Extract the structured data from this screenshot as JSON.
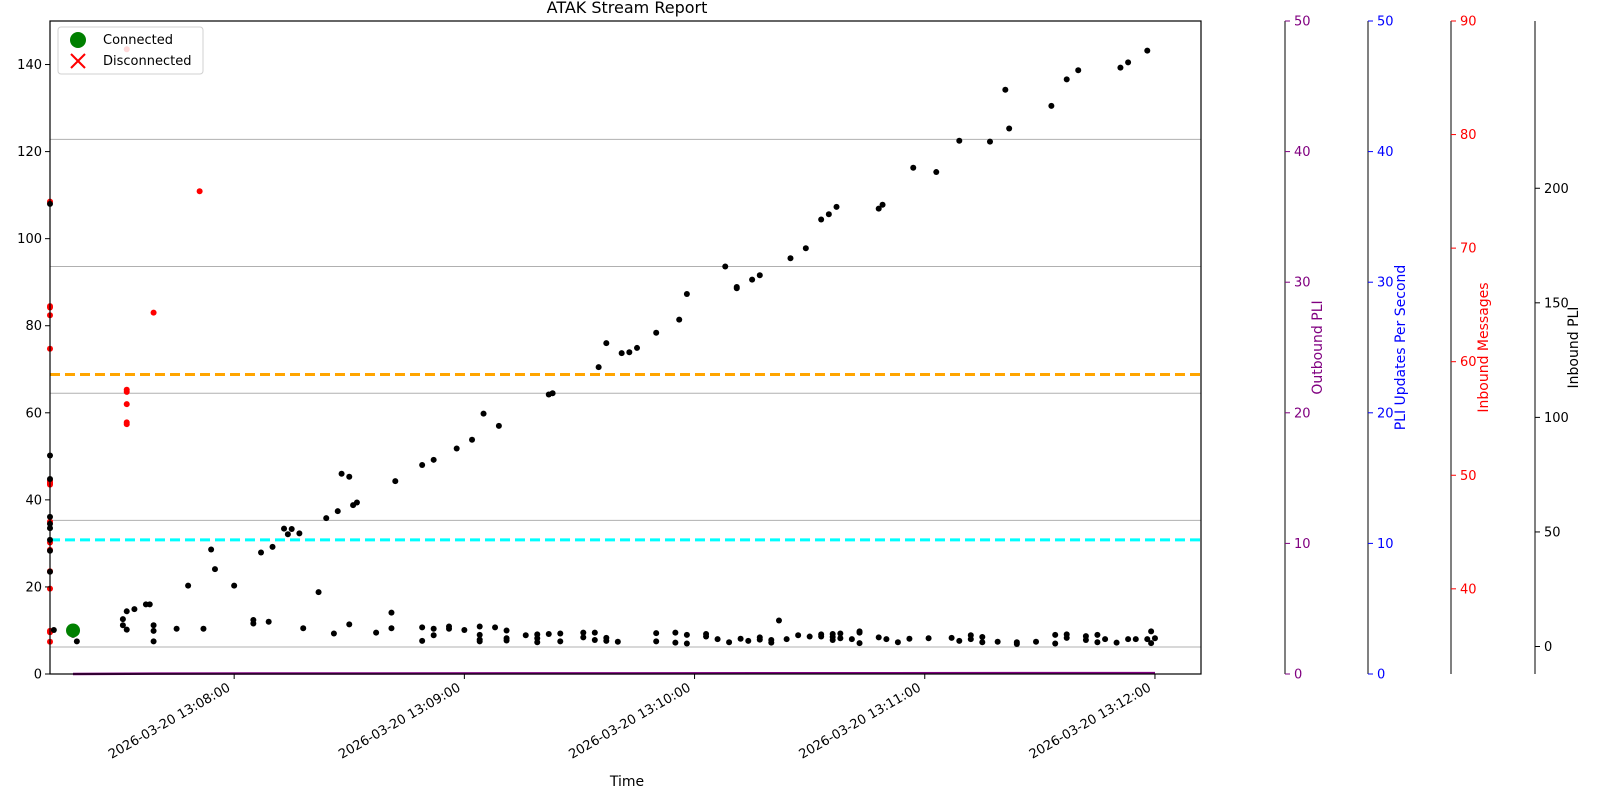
{
  "chart_data": {
    "type": "scatter",
    "title": "ATAK Stream Report",
    "xlabel": "Time",
    "ylabel": "",
    "xlim": [
      "2026-03-20 13:07:12",
      "2026-03-20 13:12:12"
    ],
    "ylim": [
      0,
      150
    ],
    "x_ticks": [
      "2026-03-20 13:08:00",
      "2026-03-20 13:09:00",
      "2026-03-20 13:10:00",
      "2026-03-20 13:11:00",
      "2026-03-20 13:12:00"
    ],
    "y_ticks": [
      0,
      20,
      40,
      60,
      80,
      100,
      120,
      140
    ],
    "grid": "horizontal lines only",
    "legend": {
      "position": "top-left",
      "entries": [
        {
          "label": "Connected",
          "marker": "circle",
          "color": "#008000"
        },
        {
          "label": "Disconnected",
          "marker": "x",
          "color": "#ff0000"
        }
      ]
    },
    "colors": {
      "inbound_pli": "#000000",
      "inbound_messages": "#ff0000",
      "outbound_pli": "#800080",
      "pli_per_second": "#0000ff",
      "orange_line": "#ffa500",
      "cyan_line": "#00ffff",
      "connected": "#008000",
      "grid": "#b0b0b0"
    },
    "horizontal_lines": [
      {
        "color": "orange",
        "style": "dashed",
        "y": 68.8
      },
      {
        "color": "cyan",
        "style": "dashed",
        "y": 30.8
      }
    ],
    "gridline_y": [
      6.2,
      35.3,
      64.5,
      93.6,
      122.8
    ],
    "secondary_axes": [
      {
        "label": "Outbound PLI",
        "color": "#800080",
        "range": [
          0,
          50
        ],
        "ticks": [
          0,
          10,
          20,
          30,
          40,
          50
        ]
      },
      {
        "label": "PLI Updates Per Second",
        "color": "#0000ff",
        "range": [
          0,
          50
        ],
        "ticks": [
          0,
          10,
          20,
          30,
          40,
          50
        ]
      },
      {
        "label": "Inbound Messages",
        "color": "#ff0000",
        "range": [
          32.5,
          90
        ],
        "ticks": [
          40,
          50,
          60,
          70,
          80,
          90
        ]
      },
      {
        "label": "Inbound PLI",
        "color": "#000000",
        "range": [
          -12,
          273
        ],
        "ticks": [
          0,
          50,
          100,
          150,
          200
        ]
      }
    ],
    "connected_events": [
      {
        "t": "2026-03-20 13:07:18",
        "y": 10
      }
    ],
    "outbound_pli_series": {
      "name": "Outbound PLI",
      "x": [
        "2026-03-20 13:07:18",
        "2026-03-20 13:07:39",
        "2026-03-20 13:12:00"
      ],
      "y": [
        0,
        0.1,
        0.2
      ]
    },
    "inbound_message_points": [
      [
        "2026-03-20 13:07:12",
        108.5
      ],
      [
        "2026-03-20 13:07:12",
        84.5
      ],
      [
        "2026-03-20 13:07:12",
        84.2
      ],
      [
        "2026-03-20 13:07:12",
        82.4
      ],
      [
        "2026-03-20 13:07:12",
        74.7
      ],
      [
        "2026-03-20 13:07:12",
        43.5
      ],
      [
        "2026-03-20 13:07:12",
        44.0
      ],
      [
        "2026-03-20 13:07:12",
        44.4
      ],
      [
        "2026-03-20 13:07:12",
        43.8
      ],
      [
        "2026-03-20 13:07:12",
        35.0
      ],
      [
        "2026-03-20 13:07:12",
        30.2
      ],
      [
        "2026-03-20 13:07:12",
        28.5
      ],
      [
        "2026-03-20 13:07:12",
        23.6
      ],
      [
        "2026-03-20 13:07:12",
        19.6
      ],
      [
        "2026-03-20 13:07:12",
        9.9
      ],
      [
        "2026-03-20 13:07:12",
        9.6
      ],
      [
        "2026-03-20 13:07:12",
        7.4
      ],
      [
        "2026-03-20 13:07:32",
        143.5
      ],
      [
        "2026-03-20 13:07:32",
        65.3
      ],
      [
        "2026-03-20 13:07:32",
        64.8
      ],
      [
        "2026-03-20 13:07:32",
        62.0
      ],
      [
        "2026-03-20 13:07:32",
        57.8
      ],
      [
        "2026-03-20 13:07:32",
        57.4
      ],
      [
        "2026-03-20 13:07:39",
        83.0
      ],
      [
        "2026-03-20 13:07:51",
        110.9
      ]
    ],
    "inbound_pli_points": [
      [
        "2026-03-20 13:07:12",
        108.0
      ],
      [
        "2026-03-20 13:07:12",
        50.2
      ],
      [
        "2026-03-20 13:07:12",
        44.8
      ],
      [
        "2026-03-20 13:07:12",
        36.1
      ],
      [
        "2026-03-20 13:07:12",
        34.5
      ],
      [
        "2026-03-20 13:07:12",
        33.5
      ],
      [
        "2026-03-20 13:07:12",
        30.8
      ],
      [
        "2026-03-20 13:07:12",
        28.3
      ],
      [
        "2026-03-20 13:07:12",
        23.5
      ],
      [
        "2026-03-20 13:07:13",
        10.1
      ],
      [
        "2026-03-20 13:07:18",
        10.8
      ],
      [
        "2026-03-20 13:07:18",
        10.2
      ],
      [
        "2026-03-20 13:07:18",
        9.4
      ],
      [
        "2026-03-20 13:07:18",
        9.0
      ],
      [
        "2026-03-20 13:07:19",
        7.5
      ],
      [
        "2026-03-20 13:07:31",
        12.6
      ],
      [
        "2026-03-20 13:07:31",
        11.2
      ],
      [
        "2026-03-20 13:07:32",
        10.2
      ],
      [
        "2026-03-20 13:07:32",
        14.4
      ],
      [
        "2026-03-20 13:07:34",
        14.9
      ],
      [
        "2026-03-20 13:07:37",
        16.0
      ],
      [
        "2026-03-20 13:07:38",
        16.0
      ],
      [
        "2026-03-20 13:07:39",
        11.2
      ],
      [
        "2026-03-20 13:07:39",
        9.9
      ],
      [
        "2026-03-20 13:07:39",
        7.5
      ],
      [
        "2026-03-20 13:07:45",
        10.4
      ],
      [
        "2026-03-20 13:07:48",
        20.3
      ],
      [
        "2026-03-20 13:07:52",
        10.4
      ],
      [
        "2026-03-20 13:07:54",
        28.6
      ],
      [
        "2026-03-20 13:07:55",
        24.1
      ],
      [
        "2026-03-20 13:08:00",
        20.3
      ],
      [
        "2026-03-20 13:08:05",
        12.4
      ],
      [
        "2026-03-20 13:08:05",
        11.6
      ],
      [
        "2026-03-20 13:08:07",
        27.9
      ],
      [
        "2026-03-20 13:08:09",
        12.0
      ],
      [
        "2026-03-20 13:08:10",
        29.2
      ],
      [
        "2026-03-20 13:08:13",
        33.4
      ],
      [
        "2026-03-20 13:08:14",
        32.1
      ],
      [
        "2026-03-20 13:08:15",
        33.3
      ],
      [
        "2026-03-20 13:08:17",
        32.3
      ],
      [
        "2026-03-20 13:08:18",
        10.5
      ],
      [
        "2026-03-20 13:08:22",
        18.8
      ],
      [
        "2026-03-20 13:08:24",
        35.8
      ],
      [
        "2026-03-20 13:08:26",
        9.3
      ],
      [
        "2026-03-20 13:08:27",
        37.4
      ],
      [
        "2026-03-20 13:08:28",
        46.0
      ],
      [
        "2026-03-20 13:08:30",
        45.3
      ],
      [
        "2026-03-20 13:08:30",
        11.4
      ],
      [
        "2026-03-20 13:08:31",
        38.8
      ],
      [
        "2026-03-20 13:08:32",
        39.4
      ],
      [
        "2026-03-20 13:08:37",
        9.5
      ],
      [
        "2026-03-20 13:08:41",
        14.1
      ],
      [
        "2026-03-20 13:08:41",
        10.5
      ],
      [
        "2026-03-20 13:08:42",
        44.3
      ],
      [
        "2026-03-20 13:08:49",
        10.7
      ],
      [
        "2026-03-20 13:08:49",
        7.6
      ],
      [
        "2026-03-20 13:08:49",
        48.0
      ],
      [
        "2026-03-20 13:08:52",
        10.4
      ],
      [
        "2026-03-20 13:08:52",
        8.9
      ],
      [
        "2026-03-20 13:08:52",
        49.2
      ],
      [
        "2026-03-20 13:08:56",
        10.9
      ],
      [
        "2026-03-20 13:08:56",
        10.4
      ],
      [
        "2026-03-20 13:08:58",
        51.8
      ],
      [
        "2026-03-20 13:09:00",
        10.1
      ],
      [
        "2026-03-20 13:09:02",
        53.8
      ],
      [
        "2026-03-20 13:09:04",
        10.9
      ],
      [
        "2026-03-20 13:09:04",
        9.0
      ],
      [
        "2026-03-20 13:09:04",
        7.9
      ],
      [
        "2026-03-20 13:09:04",
        7.5
      ],
      [
        "2026-03-20 13:09:05",
        59.8
      ],
      [
        "2026-03-20 13:09:08",
        10.7
      ],
      [
        "2026-03-20 13:09:09",
        57.0
      ],
      [
        "2026-03-20 13:09:11",
        10.0
      ],
      [
        "2026-03-20 13:09:11",
        8.2
      ],
      [
        "2026-03-20 13:09:11",
        7.7
      ],
      [
        "2026-03-20 13:09:16",
        8.9
      ],
      [
        "2026-03-20 13:09:19",
        9.1
      ],
      [
        "2026-03-20 13:09:19",
        8.2
      ],
      [
        "2026-03-20 13:09:19",
        7.3
      ],
      [
        "2026-03-20 13:09:22",
        9.2
      ],
      [
        "2026-03-20 13:09:22",
        64.2
      ],
      [
        "2026-03-20 13:09:23",
        64.5
      ],
      [
        "2026-03-20 13:09:25",
        9.3
      ],
      [
        "2026-03-20 13:09:25",
        7.5
      ],
      [
        "2026-03-20 13:09:31",
        9.5
      ],
      [
        "2026-03-20 13:09:31",
        8.4
      ],
      [
        "2026-03-20 13:09:34",
        9.5
      ],
      [
        "2026-03-20 13:09:34",
        7.8
      ],
      [
        "2026-03-20 13:09:35",
        70.5
      ],
      [
        "2026-03-20 13:09:37",
        8.3
      ],
      [
        "2026-03-20 13:09:37",
        7.6
      ],
      [
        "2026-03-20 13:09:37",
        76.0
      ],
      [
        "2026-03-20 13:09:40",
        7.4
      ],
      [
        "2026-03-20 13:09:41",
        73.7
      ],
      [
        "2026-03-20 13:09:43",
        73.9
      ],
      [
        "2026-03-20 13:09:45",
        74.9
      ],
      [
        "2026-03-20 13:09:50",
        9.4
      ],
      [
        "2026-03-20 13:09:50",
        7.5
      ],
      [
        "2026-03-20 13:09:50",
        78.4
      ],
      [
        "2026-03-20 13:09:55",
        9.5
      ],
      [
        "2026-03-20 13:09:55",
        7.2
      ],
      [
        "2026-03-20 13:09:56",
        81.4
      ],
      [
        "2026-03-20 13:09:58",
        9.0
      ],
      [
        "2026-03-20 13:09:58",
        7.0
      ],
      [
        "2026-03-20 13:09:58",
        87.3
      ],
      [
        "2026-03-20 13:10:03",
        9.2
      ],
      [
        "2026-03-20 13:10:03",
        8.6
      ],
      [
        "2026-03-20 13:10:06",
        8.0
      ],
      [
        "2026-03-20 13:10:08",
        93.6
      ],
      [
        "2026-03-20 13:10:09",
        7.3
      ],
      [
        "2026-03-20 13:10:11",
        88.9
      ],
      [
        "2026-03-20 13:10:11",
        88.6
      ],
      [
        "2026-03-20 13:10:12",
        8.1
      ],
      [
        "2026-03-20 13:10:14",
        7.6
      ],
      [
        "2026-03-20 13:10:15",
        90.6
      ],
      [
        "2026-03-20 13:10:17",
        91.6
      ],
      [
        "2026-03-20 13:10:17",
        8.4
      ],
      [
        "2026-03-20 13:10:17",
        7.9
      ],
      [
        "2026-03-20 13:10:20",
        7.8
      ],
      [
        "2026-03-20 13:10:20",
        7.2
      ],
      [
        "2026-03-20 13:10:22",
        12.3
      ],
      [
        "2026-03-20 13:10:24",
        8.0
      ],
      [
        "2026-03-20 13:10:25",
        95.5
      ],
      [
        "2026-03-20 13:10:27",
        8.9
      ],
      [
        "2026-03-20 13:10:29",
        97.8
      ],
      [
        "2026-03-20 13:10:30",
        8.6
      ],
      [
        "2026-03-20 13:10:33",
        9.1
      ],
      [
        "2026-03-20 13:10:33",
        8.6
      ],
      [
        "2026-03-20 13:10:33",
        104.4
      ],
      [
        "2026-03-20 13:10:35",
        105.6
      ],
      [
        "2026-03-20 13:10:36",
        9.2
      ],
      [
        "2026-03-20 13:10:36",
        8.5
      ],
      [
        "2026-03-20 13:10:36",
        7.8
      ],
      [
        "2026-03-20 13:10:37",
        107.3
      ],
      [
        "2026-03-20 13:10:38",
        9.3
      ],
      [
        "2026-03-20 13:10:38",
        8.2
      ],
      [
        "2026-03-20 13:10:41",
        8.0
      ],
      [
        "2026-03-20 13:10:43",
        9.8
      ],
      [
        "2026-03-20 13:10:43",
        9.5
      ],
      [
        "2026-03-20 13:10:43",
        7.1
      ],
      [
        "2026-03-20 13:10:48",
        8.4
      ],
      [
        "2026-03-20 13:10:48",
        106.9
      ],
      [
        "2026-03-20 13:10:49",
        107.8
      ],
      [
        "2026-03-20 13:10:50",
        8.0
      ],
      [
        "2026-03-20 13:10:53",
        7.3
      ],
      [
        "2026-03-20 13:10:56",
        8.1
      ],
      [
        "2026-03-20 13:10:57",
        116.3
      ],
      [
        "2026-03-20 13:11:01",
        8.2
      ],
      [
        "2026-03-20 13:11:03",
        115.3
      ],
      [
        "2026-03-20 13:11:07",
        8.3
      ],
      [
        "2026-03-20 13:11:09",
        7.6
      ],
      [
        "2026-03-20 13:11:09",
        122.5
      ],
      [
        "2026-03-20 13:11:12",
        8.9
      ],
      [
        "2026-03-20 13:11:12",
        8.0
      ],
      [
        "2026-03-20 13:11:15",
        8.5
      ],
      [
        "2026-03-20 13:11:15",
        7.3
      ],
      [
        "2026-03-20 13:11:17",
        122.3
      ],
      [
        "2026-03-20 13:11:19",
        7.4
      ],
      [
        "2026-03-20 13:11:21",
        134.2
      ],
      [
        "2026-03-20 13:11:22",
        125.3
      ],
      [
        "2026-03-20 13:11:24",
        7.3
      ],
      [
        "2026-03-20 13:11:24",
        6.9
      ],
      [
        "2026-03-20 13:11:29",
        7.4
      ],
      [
        "2026-03-20 13:11:33",
        130.5
      ],
      [
        "2026-03-20 13:11:34",
        9.0
      ],
      [
        "2026-03-20 13:11:34",
        7.0
      ],
      [
        "2026-03-20 13:11:37",
        9.1
      ],
      [
        "2026-03-20 13:11:37",
        8.3
      ],
      [
        "2026-03-20 13:11:37",
        136.6
      ],
      [
        "2026-03-20 13:11:40",
        138.7
      ],
      [
        "2026-03-20 13:11:42",
        8.7
      ],
      [
        "2026-03-20 13:11:42",
        7.8
      ],
      [
        "2026-03-20 13:11:45",
        9.0
      ],
      [
        "2026-03-20 13:11:45",
        7.3
      ],
      [
        "2026-03-20 13:11:47",
        8.0
      ],
      [
        "2026-03-20 13:11:50",
        7.2
      ],
      [
        "2026-03-20 13:11:51",
        139.3
      ],
      [
        "2026-03-20 13:11:53",
        140.5
      ],
      [
        "2026-03-20 13:11:53",
        8.0
      ],
      [
        "2026-03-20 13:11:55",
        8.0
      ],
      [
        "2026-03-20 13:11:58",
        8.0
      ],
      [
        "2026-03-20 13:11:58",
        143.2
      ],
      [
        "2026-03-20 13:11:59",
        9.8
      ],
      [
        "2026-03-20 13:11:59",
        7.1
      ],
      [
        "2026-03-20 13:12:00",
        8.2
      ]
    ]
  }
}
